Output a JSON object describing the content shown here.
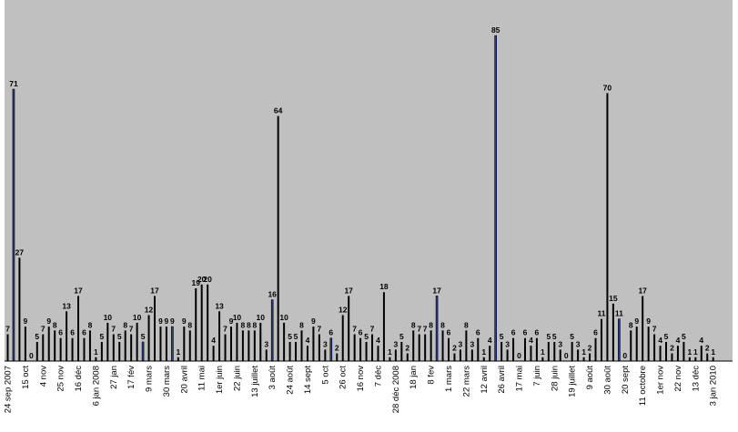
{
  "chart_data": {
    "type": "bar",
    "title": "",
    "xlabel": "",
    "ylabel": "",
    "ylim": [
      0,
      87
    ],
    "grid": false,
    "legend": "none",
    "colors": {
      "plot_background": "#c0c0c0",
      "bar": "#000000",
      "bar_highlight": "#2e3a8c",
      "axis": "#000000"
    },
    "values": [
      7,
      71,
      27,
      9,
      0,
      5,
      7,
      9,
      8,
      6,
      13,
      6,
      17,
      6,
      8,
      1,
      5,
      10,
      7,
      5,
      8,
      7,
      10,
      5,
      12,
      17,
      9,
      9,
      9,
      1,
      9,
      8,
      19,
      20,
      20,
      4,
      13,
      7,
      9,
      10,
      8,
      8,
      8,
      10,
      3,
      16,
      64,
      10,
      5,
      5,
      8,
      4,
      9,
      7,
      3,
      6,
      2,
      12,
      17,
      7,
      6,
      5,
      7,
      4,
      18,
      1,
      3,
      5,
      2,
      8,
      7,
      7,
      8,
      17,
      8,
      6,
      2,
      3,
      8,
      3,
      6,
      1,
      4,
      85,
      5,
      3,
      6,
      0,
      6,
      4,
      6,
      1,
      5,
      5,
      3,
      0,
      5,
      3,
      1,
      2,
      6,
      11,
      70,
      15,
      11,
      0,
      8,
      9,
      17,
      9,
      7,
      4,
      5,
      2,
      4,
      5,
      1,
      1,
      4,
      2,
      1
    ],
    "highlighted_indices": [
      1,
      23,
      28,
      45,
      55,
      73,
      83,
      104
    ],
    "categories": [
      "24 sep 2007",
      "",
      "",
      "15 oct",
      "",
      "",
      "4 nov",
      "",
      "",
      "25 nov",
      "",
      "",
      "16 déc",
      "",
      "",
      "6 jan 2008",
      "",
      "",
      "27 jan",
      "",
      "",
      "17 fév",
      "",
      "",
      "9 mars",
      "",
      "",
      "30 mars",
      "",
      "",
      "20 avril",
      "",
      "",
      "11 mai",
      "",
      "",
      "1er juin",
      "",
      "",
      "22 juin",
      "",
      "",
      "13 juillet",
      "",
      "",
      "3 août",
      "",
      "",
      "24 août",
      "",
      "",
      "14 sept",
      "",
      "",
      "5 oct",
      "",
      "",
      "26 oct",
      "",
      "",
      "16 nov",
      "",
      "",
      "7 déc",
      "",
      "",
      "28 déc 2008",
      "",
      "",
      "18 jan",
      "",
      "",
      "8 fev",
      "",
      "",
      "1 mars",
      "",
      "",
      "22 mars",
      "",
      "",
      "12 avril",
      "",
      "",
      "26 avril",
      "",
      "",
      "17 mai",
      "",
      "",
      "7 juin",
      "",
      "",
      "28 juin",
      "",
      "",
      "19 juillet",
      "",
      "",
      "9 août",
      "",
      "",
      "30 août",
      "",
      "",
      "20 sept",
      "",
      "",
      "11 octobre",
      "",
      "",
      "1er nov",
      "",
      "",
      "22 nov",
      "",
      "",
      "13 déc",
      "",
      "",
      "3 jan 2010"
    ]
  }
}
